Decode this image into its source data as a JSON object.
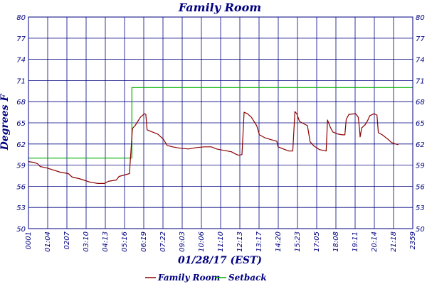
{
  "chart_data": {
    "type": "line",
    "title": "Family Room",
    "xlabel": "01/28/17 (EST)",
    "ylabel": "Degrees F",
    "ylim": [
      50,
      80
    ],
    "yticks": [
      "50",
      "53",
      "56",
      "59",
      "62",
      "65",
      "68",
      "71",
      "74",
      "77",
      "80"
    ],
    "xlim": [
      "00:01",
      "23:59"
    ],
    "xticks": [
      "0001",
      "01:04",
      "0207",
      "03:10",
      "04:13",
      "05:16",
      "06:19",
      "07:22",
      "09:03",
      "10:06",
      "11:10",
      "12:13",
      "13:17",
      "14:20",
      "15:23",
      "17:05",
      "18:08",
      "19:11",
      "20:14",
      "21:18",
      "2359"
    ],
    "grid": true,
    "legend_position": "bottom",
    "series": [
      {
        "name": "Family Room",
        "color": "#8b0000",
        "points": [
          [
            "00:01",
            59.5
          ],
          [
            "00:20",
            59.4
          ],
          [
            "00:35",
            59.2
          ],
          [
            "00:45",
            58.8
          ],
          [
            "01:10",
            58.6
          ],
          [
            "01:35",
            58.3
          ],
          [
            "02:00",
            58.0
          ],
          [
            "02:30",
            57.8
          ],
          [
            "02:45",
            57.3
          ],
          [
            "03:10",
            57.1
          ],
          [
            "03:35",
            56.8
          ],
          [
            "03:50",
            56.6
          ],
          [
            "04:20",
            56.4
          ],
          [
            "04:45",
            56.4
          ],
          [
            "05:00",
            56.7
          ],
          [
            "05:30",
            56.9
          ],
          [
            "05:40",
            57.4
          ],
          [
            "06:00",
            57.6
          ],
          [
            "06:19",
            57.8
          ],
          [
            "06:30",
            64.2
          ],
          [
            "06:40",
            64.6
          ],
          [
            "06:50",
            65.2
          ],
          [
            "07:00",
            65.8
          ],
          [
            "07:15",
            66.3
          ],
          [
            "07:20",
            66.2
          ],
          [
            "07:25",
            64.0
          ],
          [
            "07:45",
            63.7
          ],
          [
            "08:05",
            63.4
          ],
          [
            "08:25",
            62.7
          ],
          [
            "08:40",
            61.8
          ],
          [
            "09:00",
            61.6
          ],
          [
            "09:30",
            61.4
          ],
          [
            "10:00",
            61.3
          ],
          [
            "10:30",
            61.5
          ],
          [
            "11:00",
            61.6
          ],
          [
            "11:25",
            61.6
          ],
          [
            "11:45",
            61.3
          ],
          [
            "12:10",
            61.1
          ],
          [
            "12:40",
            60.9
          ],
          [
            "13:00",
            60.5
          ],
          [
            "13:10",
            60.4
          ],
          [
            "13:20",
            60.5
          ],
          [
            "13:28",
            66.5
          ],
          [
            "13:40",
            66.3
          ],
          [
            "13:55",
            65.8
          ],
          [
            "14:05",
            65.2
          ],
          [
            "14:15",
            64.6
          ],
          [
            "14:25",
            63.3
          ],
          [
            "14:45",
            62.9
          ],
          [
            "15:10",
            62.6
          ],
          [
            "15:30",
            62.4
          ],
          [
            "15:35",
            61.6
          ],
          [
            "15:55",
            61.3
          ],
          [
            "16:15",
            61.0
          ],
          [
            "16:30",
            61.0
          ],
          [
            "16:38",
            66.6
          ],
          [
            "16:45",
            66.3
          ],
          [
            "16:55",
            65.2
          ],
          [
            "17:10",
            64.9
          ],
          [
            "17:25",
            64.6
          ],
          [
            "17:35",
            62.3
          ],
          [
            "17:50",
            61.7
          ],
          [
            "18:10",
            61.2
          ],
          [
            "18:35",
            61.0
          ],
          [
            "18:40",
            65.4
          ],
          [
            "18:50",
            64.4
          ],
          [
            "19:00",
            63.7
          ],
          [
            "19:20",
            63.4
          ],
          [
            "19:35",
            63.3
          ],
          [
            "19:45",
            63.3
          ],
          [
            "19:50",
            65.5
          ],
          [
            "20:00",
            66.2
          ],
          [
            "20:25",
            66.3
          ],
          [
            "20:35",
            65.8
          ],
          [
            "20:40",
            64.0
          ],
          [
            "20:42",
            63.0
          ],
          [
            "20:48",
            64.3
          ],
          [
            "21:00",
            64.7
          ],
          [
            "21:10",
            65.3
          ],
          [
            "21:18",
            66.0
          ],
          [
            "21:35",
            66.3
          ],
          [
            "21:45",
            66.1
          ],
          [
            "21:50",
            63.6
          ],
          [
            "22:05",
            63.3
          ],
          [
            "22:25",
            62.7
          ],
          [
            "22:40",
            62.2
          ],
          [
            "22:55",
            62.0
          ],
          [
            "23:05",
            61.9
          ]
        ]
      },
      {
        "name": "Setback",
        "color": "#00b000",
        "points": [
          [
            "00:01",
            60.0
          ],
          [
            "06:28",
            60.0
          ],
          [
            "06:28",
            70.0
          ],
          [
            "23:59",
            70.0
          ]
        ]
      }
    ]
  }
}
